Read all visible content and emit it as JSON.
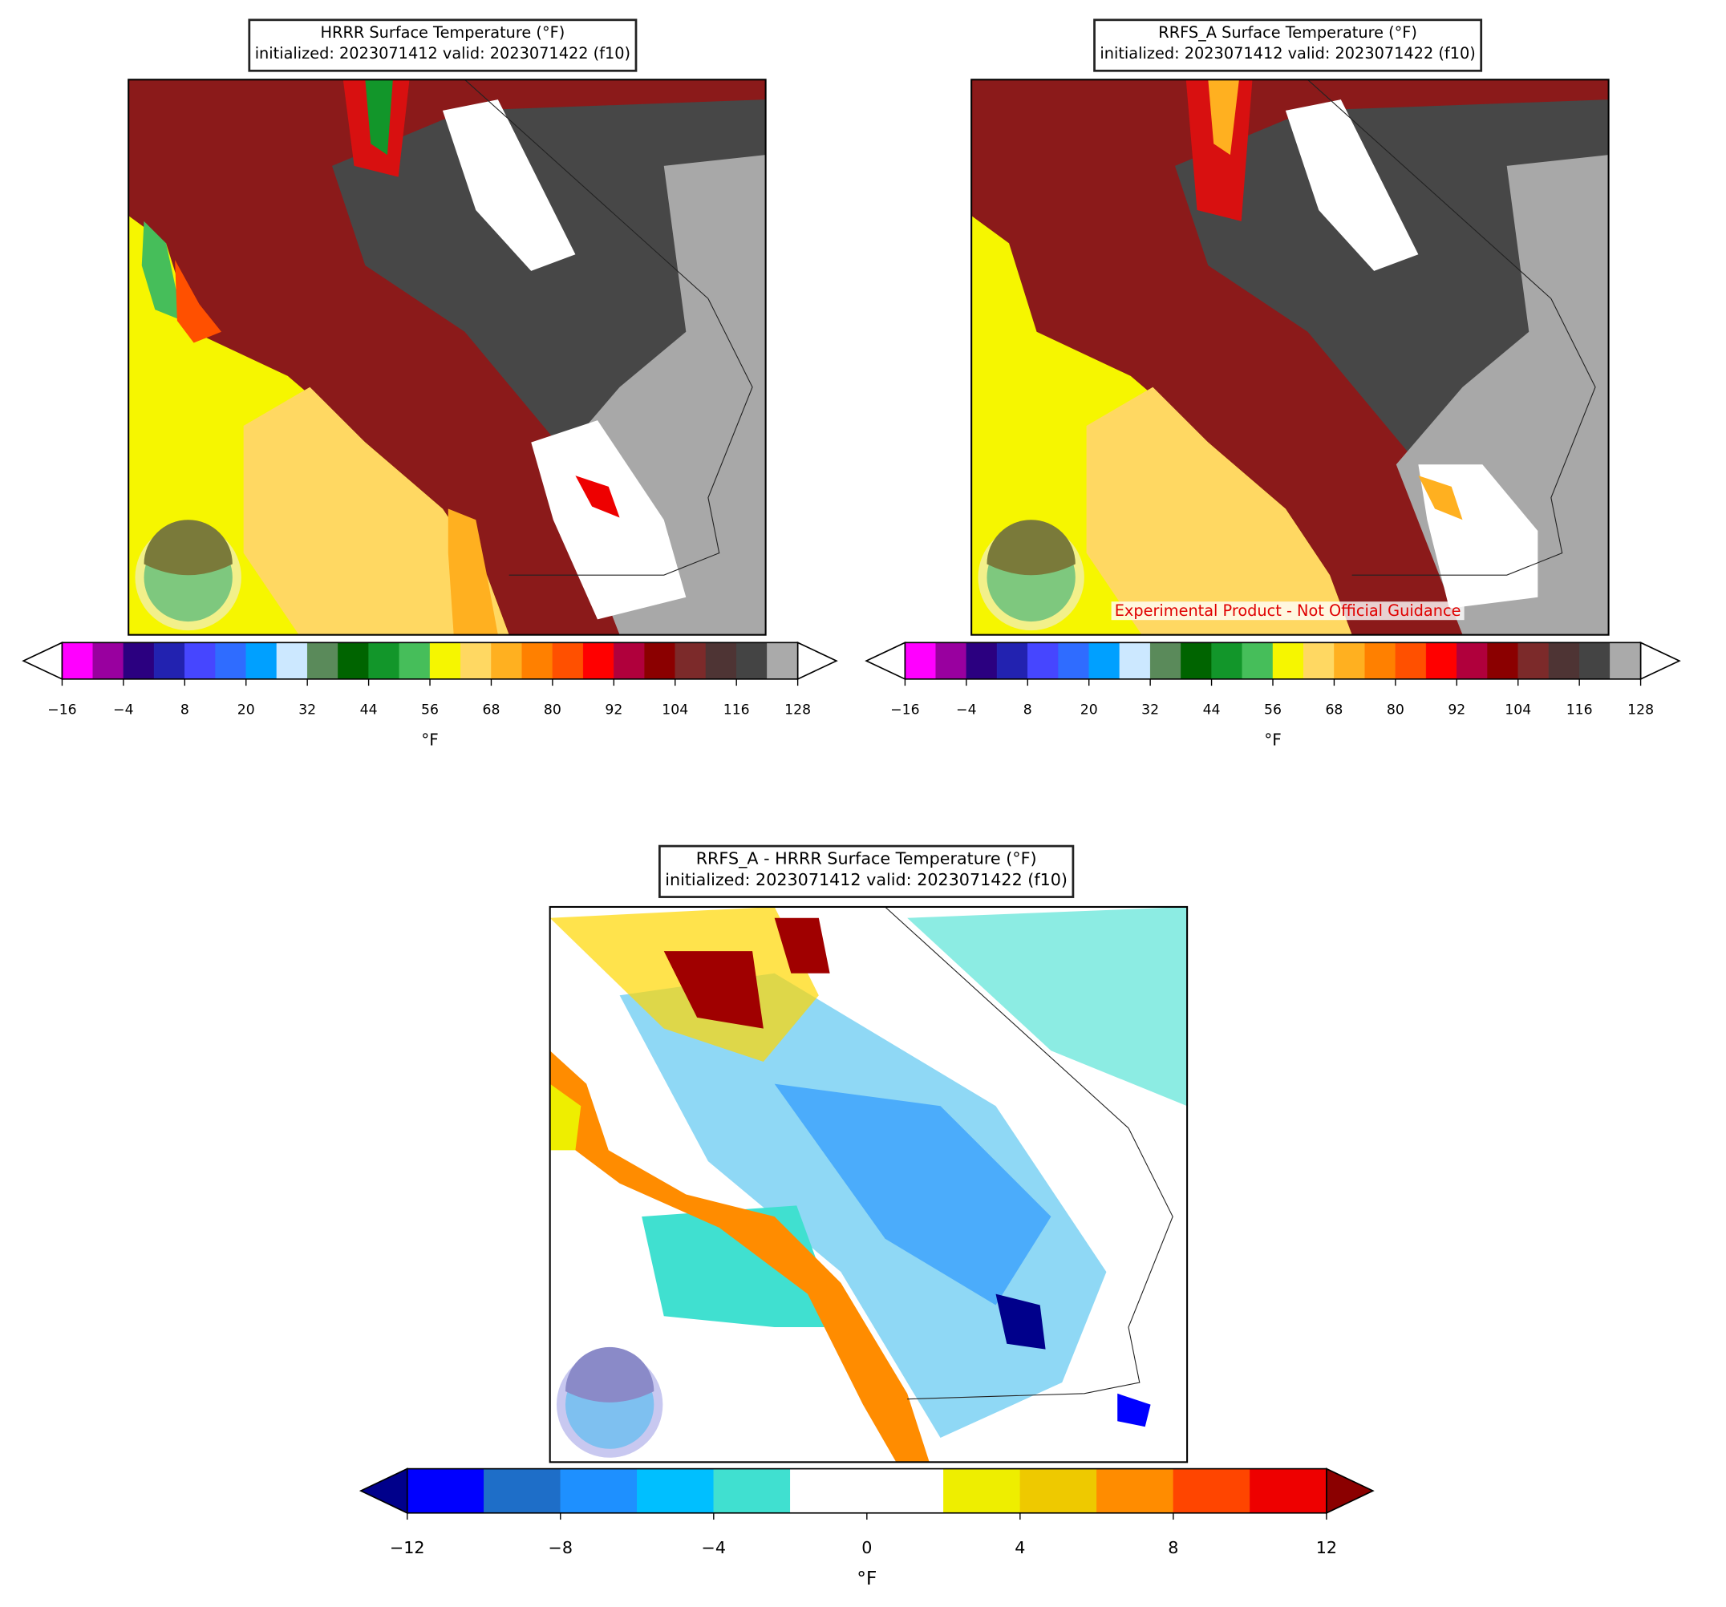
{
  "panels": [
    {
      "title": "HRRR Surface Temperature (°F)",
      "subtitle": "initialized: 2023071412 valid: 2023071422 (f10)",
      "colorbar": {
        "label": "°F",
        "under": "#ffffff",
        "over": "#ffffff",
        "bounds": [
          -16,
          -10,
          -4,
          2,
          8,
          14,
          20,
          26,
          32,
          38,
          44,
          50,
          56,
          62,
          68,
          74,
          80,
          86,
          92,
          98,
          104,
          110,
          116,
          122,
          128
        ],
        "colors": [
          "#ff00ff",
          "#99009f",
          "#2b0080",
          "#2222b0",
          "#4646ff",
          "#2f6cff",
          "#00a0ff",
          "#cce8ff",
          "#5a8a5a",
          "#006400",
          "#12962a",
          "#46be5a",
          "#f6f600",
          "#ffd862",
          "#ffb020",
          "#ff8000",
          "#ff5000",
          "#ff0000",
          "#b0003c",
          "#8b0000",
          "#7c2a2a",
          "#4e3434",
          "#444444",
          "#aaaaaa"
        ],
        "ticks": [
          {
            "value": -16,
            "label": "−16"
          },
          {
            "value": -4,
            "label": "−4"
          },
          8,
          20,
          32,
          44,
          56,
          68,
          80,
          92,
          104,
          116,
          128
        ]
      }
    },
    {
      "title": "RRFS_A Surface Temperature (°F)",
      "subtitle": "initialized: 2023071412 valid: 2023071422 (f10)",
      "watermark": "Experimental Product - Not Official Guidance",
      "colorbar": {
        "label": "°F",
        "under": "#ffffff",
        "over": "#ffffff",
        "bounds": [
          -16,
          -10,
          -4,
          2,
          8,
          14,
          20,
          26,
          32,
          38,
          44,
          50,
          56,
          62,
          68,
          74,
          80,
          86,
          92,
          98,
          104,
          110,
          116,
          122,
          128
        ],
        "colors": [
          "#ff00ff",
          "#99009f",
          "#2b0080",
          "#2222b0",
          "#4646ff",
          "#2f6cff",
          "#00a0ff",
          "#cce8ff",
          "#5a8a5a",
          "#006400",
          "#12962a",
          "#46be5a",
          "#f6f600",
          "#ffd862",
          "#ffb020",
          "#ff8000",
          "#ff5000",
          "#ff0000",
          "#b0003c",
          "#8b0000",
          "#7c2a2a",
          "#4e3434",
          "#444444",
          "#aaaaaa"
        ],
        "ticks": [
          {
            "value": -16,
            "label": "−16"
          },
          {
            "value": -4,
            "label": "−4"
          },
          8,
          20,
          32,
          44,
          56,
          68,
          80,
          92,
          104,
          116,
          128
        ]
      }
    },
    {
      "title": "RRFS_A - HRRR Surface Temperature (°F)",
      "subtitle": "initialized: 2023071412 valid: 2023071422 (f10)",
      "colorbar": {
        "label": "°F",
        "under": "#00008b",
        "over": "#8b0000",
        "bounds": [
          -12,
          -10,
          -8,
          -6,
          -4,
          -2,
          0,
          2,
          4,
          6,
          8,
          10,
          12
        ],
        "colors": [
          "#0000ff",
          "#1e6ec8",
          "#1e90ff",
          "#00bfff",
          "#40e0d0",
          "#ffffff",
          "#ffffff",
          "#eeee00",
          "#eec900",
          "#ff8c00",
          "#ff4500",
          "#ee0000"
        ],
        "ticks": [
          {
            "value": -12,
            "label": "−12"
          },
          {
            "value": -8,
            "label": "−8"
          },
          {
            "value": -4,
            "label": "−4"
          },
          0,
          4,
          8,
          12
        ]
      }
    }
  ]
}
